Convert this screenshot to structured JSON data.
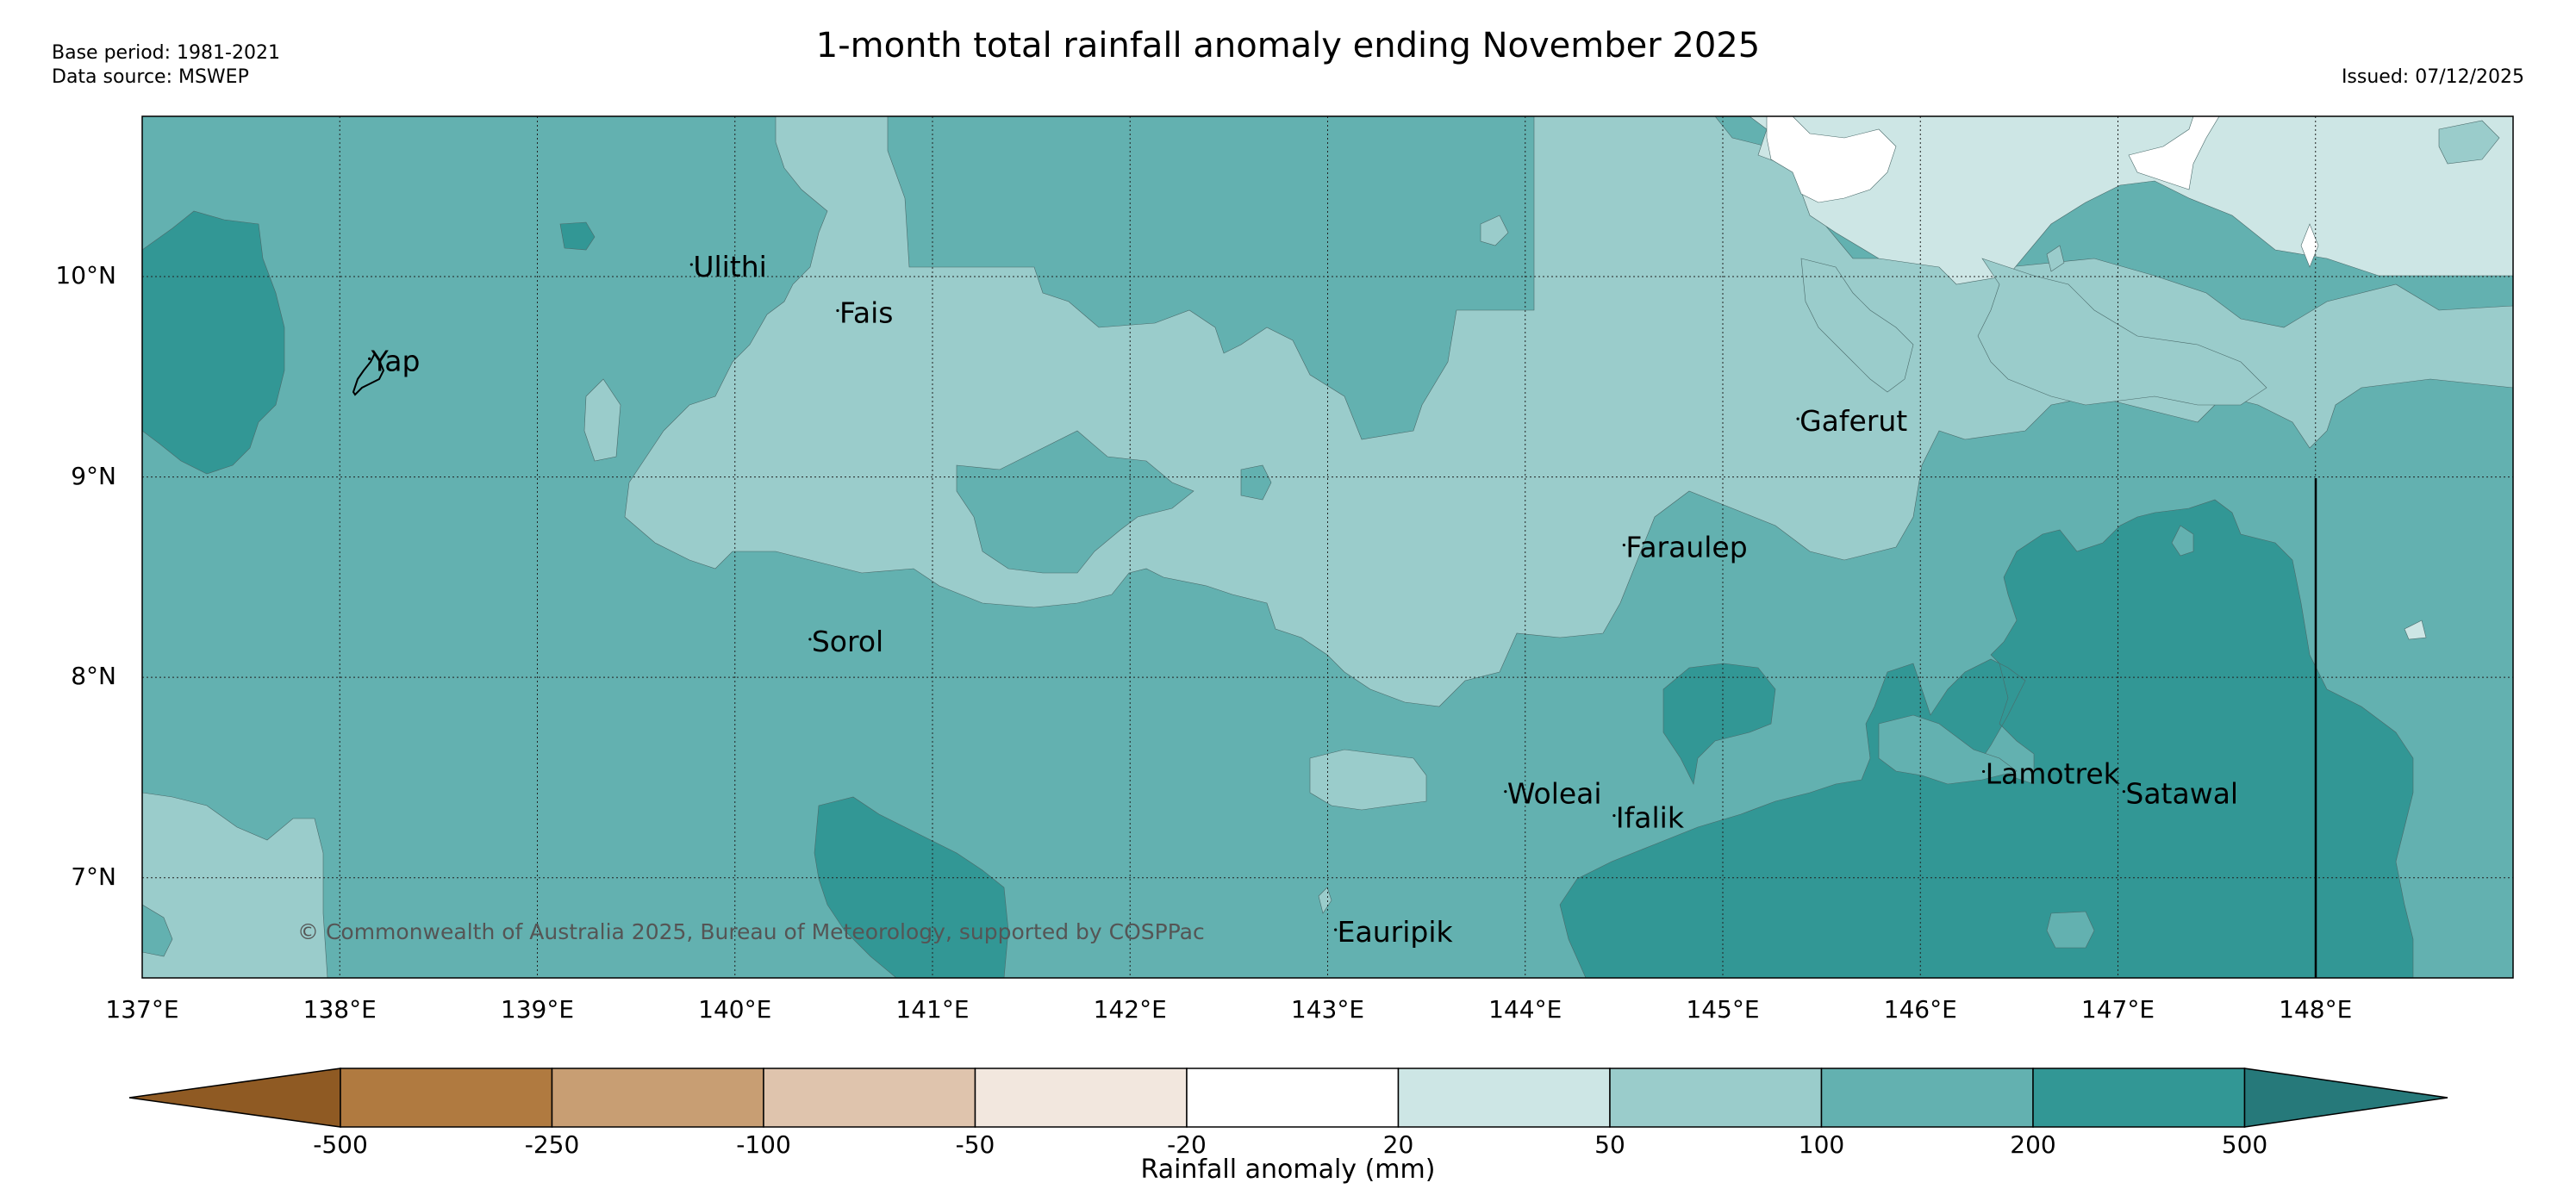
{
  "header": {
    "title": "1-month total rainfall anomaly ending November 2025",
    "base_period": "Base period: 1981-2021",
    "data_source": "Data source: MSWEP",
    "issued": "Issued: 07/12/2025"
  },
  "map": {
    "lat_labels": [
      "10°N",
      "9°N",
      "8°N",
      "7°N"
    ],
    "lon_labels": [
      "137°E",
      "138°E",
      "139°E",
      "140°E",
      "141°E",
      "142°E",
      "143°E",
      "144°E",
      "145°E",
      "146°E",
      "147°E",
      "148°E"
    ],
    "places": [
      {
        "name": "Ulithi",
        "lon": 139.78,
        "lat": 10.0
      },
      {
        "name": "Fais",
        "lon": 140.52,
        "lat": 9.77
      },
      {
        "name": "Yap",
        "lon": 138.15,
        "lat": 9.53
      },
      {
        "name": "Gaferut",
        "lon": 145.38,
        "lat": 9.23
      },
      {
        "name": "Faraulep",
        "lon": 144.5,
        "lat": 8.6
      },
      {
        "name": "Sorol",
        "lon": 140.38,
        "lat": 8.13
      },
      {
        "name": "Woleai",
        "lon": 143.9,
        "lat": 7.37
      },
      {
        "name": "Ifalik",
        "lon": 144.45,
        "lat": 7.25
      },
      {
        "name": "Lamotrek",
        "lon": 146.32,
        "lat": 7.47
      },
      {
        "name": "Satawal",
        "lon": 147.03,
        "lat": 7.37
      },
      {
        "name": "Eauripik",
        "lon": 143.04,
        "lat": 6.68
      }
    ],
    "copyright": "© Commonwealth of Australia 2025, Bureau of Meteorology, supported by COSPPac"
  },
  "colorbar": {
    "title": "Rainfall anomaly (mm)",
    "ticks": [
      "-500",
      "-250",
      "-100",
      "-50",
      "-20",
      "20",
      "50",
      "100",
      "200",
      "500"
    ],
    "colors": [
      "#8f5a23",
      "#b07a40",
      "#c89e73",
      "#dfc4ad",
      "#f2e7de",
      "#ffffff",
      "#cde6e5",
      "#9acccb",
      "#63b1b0",
      "#329795",
      "#26797a"
    ]
  },
  "colors": {
    "level_100_200": "#63b1b0",
    "level_50_100": "#9acccb",
    "level_20_50": "#cde6e5",
    "level_200_500": "#329795",
    "level_neutral": "#ffffff"
  }
}
